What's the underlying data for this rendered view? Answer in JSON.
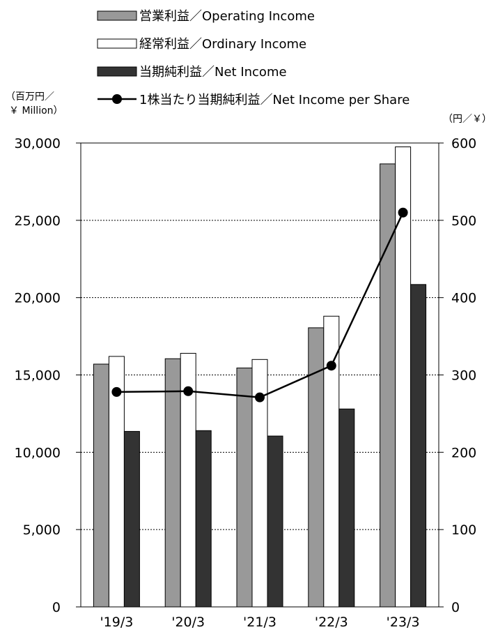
{
  "chart_data": {
    "type": "bar",
    "categories": [
      "'19/3",
      "'20/3",
      "'21/3",
      "'22/3",
      "'23/3"
    ],
    "series": [
      {
        "name": "営業利益／Operating Income",
        "kind": "bar",
        "axis": "left",
        "color": "#999999",
        "values": [
          15700,
          16050,
          15450,
          18050,
          28650
        ]
      },
      {
        "name": "経常利益／Ordinary Income",
        "kind": "bar",
        "axis": "left",
        "color": "#ffffff",
        "values": [
          16200,
          16400,
          16000,
          18800,
          29750
        ]
      },
      {
        "name": "当期純利益／Net Income",
        "kind": "bar",
        "axis": "left",
        "color": "#333333",
        "values": [
          11350,
          11400,
          11050,
          12800,
          20850
        ]
      },
      {
        "name": "1株当たり当期純利益／Net Income per Share",
        "kind": "line",
        "axis": "right",
        "color": "#000000",
        "values": [
          278,
          279,
          271,
          312,
          510
        ]
      }
    ],
    "y_left": {
      "unit_line1": "（百万円／",
      "unit_line2": "￥ Million）",
      "ylim": [
        0,
        30000
      ],
      "ticks": [
        "0",
        "5,000",
        "10,000",
        "15,000",
        "20,000",
        "25,000",
        "30,000"
      ]
    },
    "y_right": {
      "unit": "（円／￥）",
      "ylim": [
        0,
        600
      ],
      "ticks": [
        "0",
        "100",
        "200",
        "300",
        "400",
        "500",
        "600"
      ]
    },
    "grid": "dashed horizontal",
    "legend_position": "top"
  }
}
